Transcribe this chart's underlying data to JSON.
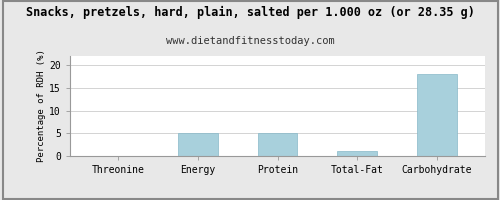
{
  "title": "Snacks, pretzels, hard, plain, salted per 1.000 oz (or 28.35 g)",
  "subtitle": "www.dietandfitnesstoday.com",
  "categories": [
    "Threonine",
    "Energy",
    "Protein",
    "Total-Fat",
    "Carbohydrate"
  ],
  "values": [
    0.0,
    5.0,
    5.0,
    1.0,
    18.0
  ],
  "bar_color": "#a8d0dc",
  "ylabel": "Percentage of RDH (%)",
  "ylim": [
    0,
    22
  ],
  "yticks": [
    0,
    5,
    10,
    15,
    20
  ],
  "background_color": "#e8e8e8",
  "plot_bg_color": "#ffffff",
  "title_fontsize": 8.5,
  "subtitle_fontsize": 7.5,
  "ylabel_fontsize": 6.5,
  "tick_fontsize": 7,
  "border_color": "#999999",
  "grid_color": "#cccccc"
}
